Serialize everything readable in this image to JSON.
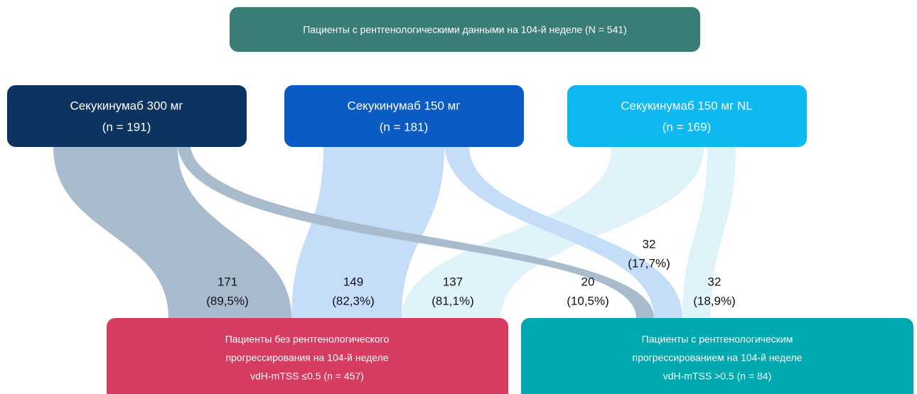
{
  "top": {
    "label": "Пациенты с рентгенологическими данными на 104-й неделе (N = 541)"
  },
  "groups": [
    {
      "name": "Секукинумаб 300 мг",
      "n": "(n = 191)"
    },
    {
      "name": "Секукинумаб 150 мг",
      "n": "(n = 181)"
    },
    {
      "name": "Секукинумаб 150 мг NL",
      "n": "(n = 169)"
    }
  ],
  "flows": [
    {
      "value": "171",
      "percent": "(89,5%)"
    },
    {
      "value": "149",
      "percent": "(82,3%)"
    },
    {
      "value": "137",
      "percent": "(81,1%)"
    },
    {
      "value": "20",
      "percent": "(10,5%)"
    },
    {
      "value": "32",
      "percent": "(17,7%)"
    },
    {
      "value": "32",
      "percent": "(18,9%)"
    }
  ],
  "outcomes": [
    {
      "lines": [
        "Пациенты без рентгенологического",
        "прогрессирования на 104-й неделе",
        "vdH-mTSS ≤0.5 (n = 457)"
      ]
    },
    {
      "lines": [
        "Пациенты с рентгенологическим",
        "прогрессированием на 104-й неделе",
        "vdH-mTSS >0.5 (n = 84)"
      ]
    }
  ]
}
